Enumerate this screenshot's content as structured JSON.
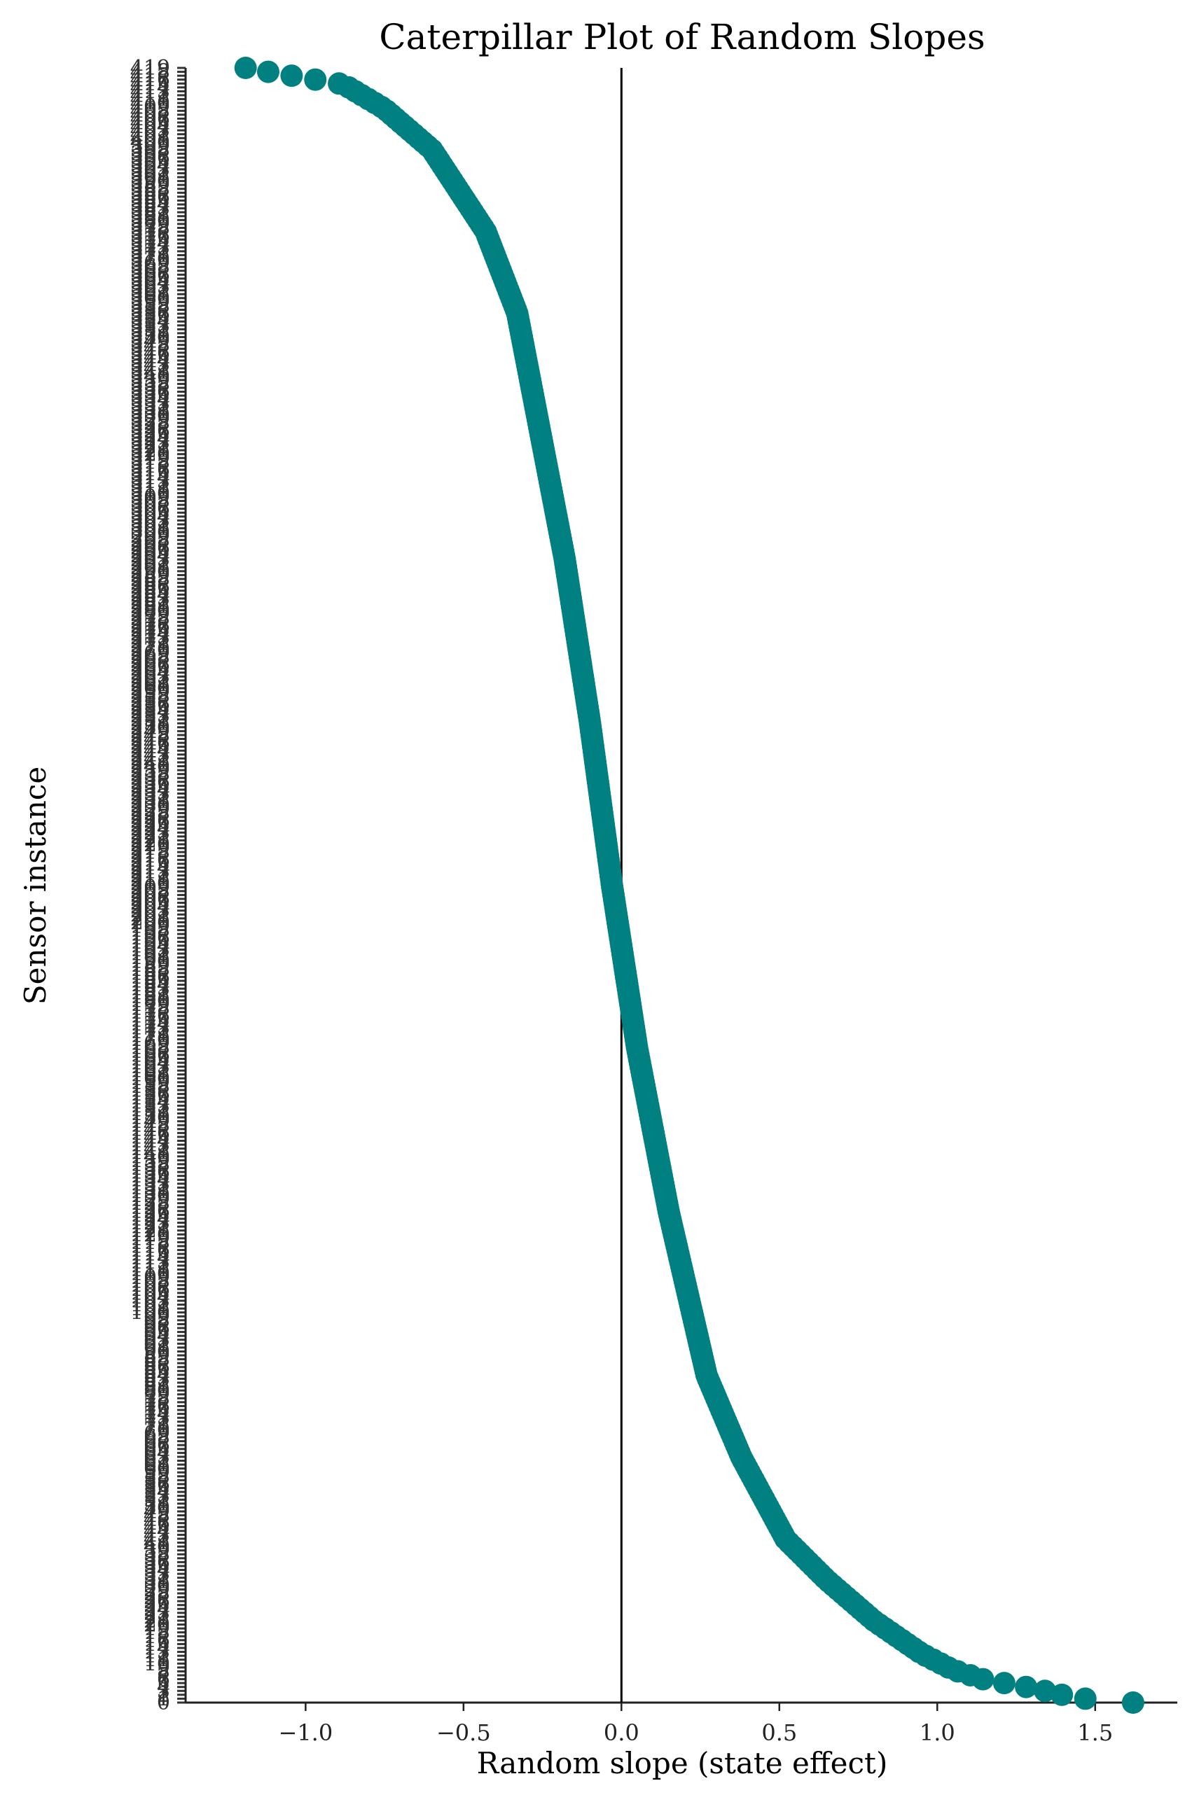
{
  "chart_data": {
    "type": "scatter",
    "title": "Caterpillar Plot of Random Slopes",
    "xlabel": "Random slope (state effect)",
    "ylabel": "Sensor instance",
    "xlim": [
      -1.38,
      1.76
    ],
    "x_ticks": [
      -1.0,
      -0.5,
      0.0,
      0.5,
      1.0,
      1.5
    ],
    "x_tick_labels": [
      "−1.0",
      "−0.5",
      "0.0",
      "0.5",
      "1.0",
      "1.5"
    ],
    "reference_line_x": 0.0,
    "marker_color": "#008080",
    "y_category_count": 420,
    "sorted_slope_profile": [
      {
        "rank": 0.0,
        "value": 1.62
      },
      {
        "rank": 0.003,
        "value": 1.43
      },
      {
        "rank": 0.006,
        "value": 1.37
      },
      {
        "rank": 0.01,
        "value": 1.27
      },
      {
        "rank": 0.014,
        "value": 1.15
      },
      {
        "rank": 0.02,
        "value": 1.05
      },
      {
        "rank": 0.03,
        "value": 0.95
      },
      {
        "rank": 0.05,
        "value": 0.8
      },
      {
        "rank": 0.075,
        "value": 0.65
      },
      {
        "rank": 0.1,
        "value": 0.52
      },
      {
        "rank": 0.15,
        "value": 0.38
      },
      {
        "rank": 0.2,
        "value": 0.27
      },
      {
        "rank": 0.3,
        "value": 0.15
      },
      {
        "rank": 0.4,
        "value": 0.05
      },
      {
        "rank": 0.5,
        "value": -0.03
      },
      {
        "rank": 0.6,
        "value": -0.1
      },
      {
        "rank": 0.7,
        "value": -0.18
      },
      {
        "rank": 0.8,
        "value": -0.28
      },
      {
        "rank": 0.85,
        "value": -0.33
      },
      {
        "rank": 0.9,
        "value": -0.43
      },
      {
        "rank": 0.95,
        "value": -0.6
      },
      {
        "rank": 0.975,
        "value": -0.75
      },
      {
        "rank": 0.99,
        "value": -0.88
      },
      {
        "rank": 0.997,
        "value": -1.1
      },
      {
        "rank": 1.0,
        "value": -1.19
      }
    ]
  }
}
